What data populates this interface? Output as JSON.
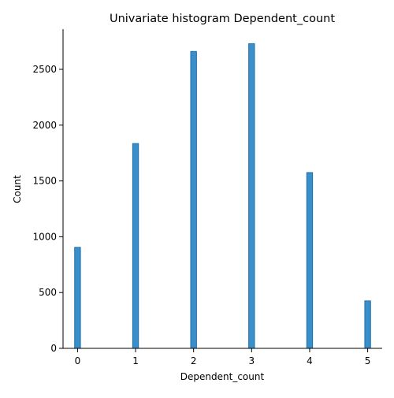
{
  "chart_data": {
    "type": "bar",
    "title": "Univariate histogram Dependent_count",
    "xlabel": "Dependent_count",
    "ylabel": "Count",
    "categories": [
      "0",
      "1",
      "2",
      "3",
      "4",
      "5"
    ],
    "x": [
      0,
      1,
      2,
      3,
      4,
      5
    ],
    "values": [
      905,
      1835,
      2660,
      2730,
      1575,
      425
    ],
    "xlim": [
      -0.25,
      5.25
    ],
    "ylim": [
      0,
      2860
    ],
    "xticks": [
      0,
      1,
      2,
      3,
      4,
      5
    ],
    "yticks": [
      0,
      500,
      1000,
      1500,
      2000,
      2500
    ],
    "bin_width": 0.1,
    "grid": false,
    "legend": "none",
    "colors": {
      "bar_fill": "#3a8fca",
      "bar_stroke": "#1f6fa8",
      "axis": "#000000"
    }
  }
}
